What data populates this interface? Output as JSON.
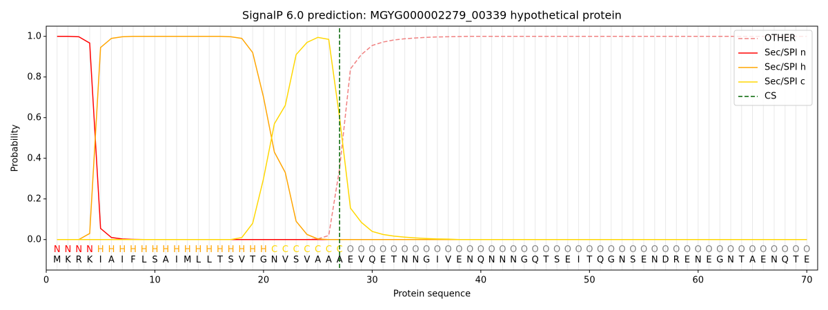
{
  "chart_data": {
    "type": "line",
    "title": "SignalP 6.0 prediction: MGYG000002279_00339 hypothetical protein",
    "xlabel": "Protein sequence",
    "ylabel": "Probability",
    "x": [
      1,
      2,
      3,
      4,
      5,
      6,
      7,
      8,
      9,
      10,
      11,
      12,
      13,
      14,
      15,
      16,
      17,
      18,
      19,
      20,
      21,
      22,
      23,
      24,
      25,
      26,
      27,
      28,
      29,
      30,
      31,
      32,
      33,
      34,
      35,
      36,
      37,
      38,
      39,
      40,
      41,
      42,
      43,
      44,
      45,
      46,
      47,
      48,
      49,
      50,
      51,
      52,
      53,
      54,
      55,
      56,
      57,
      58,
      59,
      60,
      61,
      62,
      63,
      64,
      65,
      66,
      67,
      68,
      69,
      70
    ],
    "residues": [
      "M",
      "K",
      "R",
      "K",
      "I",
      "A",
      "I",
      "F",
      "L",
      "S",
      "A",
      "I",
      "M",
      "L",
      "L",
      "T",
      "S",
      "V",
      "T",
      "G",
      "N",
      "V",
      "S",
      "V",
      "A",
      "A",
      "A",
      "E",
      "V",
      "Q",
      "E",
      "T",
      "N",
      "N",
      "G",
      "I",
      "V",
      "E",
      "N",
      "Q",
      "N",
      "N",
      "N",
      "G",
      "Q",
      "T",
      "S",
      "E",
      "I",
      "T",
      "Q",
      "G",
      "N",
      "S",
      "E",
      "N",
      "D",
      "R",
      "E",
      "N",
      "E",
      "G",
      "N",
      "T",
      "A",
      "E",
      "N",
      "Q",
      "T",
      "E"
    ],
    "labels": [
      "N",
      "N",
      "N",
      "N",
      "H",
      "H",
      "H",
      "H",
      "H",
      "H",
      "H",
      "H",
      "H",
      "H",
      "H",
      "H",
      "H",
      "H",
      "H",
      "H",
      "C",
      "C",
      "C",
      "C",
      "C",
      "C",
      "C",
      "O",
      "O",
      "O",
      "O",
      "O",
      "O",
      "O",
      "O",
      "O",
      "O",
      "O",
      "O",
      "O",
      "O",
      "O",
      "O",
      "O",
      "O",
      "O",
      "O",
      "O",
      "O",
      "O",
      "O",
      "O",
      "O",
      "O",
      "O",
      "O",
      "O",
      "O",
      "O",
      "O",
      "O",
      "O",
      "O",
      "O",
      "O",
      "O",
      "O",
      "O",
      "O",
      "O"
    ],
    "label_colors": {
      "N": "#ff0000",
      "H": "#ffa500",
      "C": "#ffd700",
      "O": "#808080"
    },
    "series": [
      {
        "name": "OTHER",
        "color": "#f08080",
        "dashed": true,
        "values": [
          0,
          0,
          0,
          0,
          0,
          0,
          0,
          0,
          0,
          0,
          0,
          0,
          0,
          0,
          0,
          0,
          0,
          0,
          0,
          0,
          0,
          0,
          0,
          0,
          0.003,
          0.02,
          0.35,
          0.84,
          0.91,
          0.955,
          0.972,
          0.982,
          0.988,
          0.992,
          0.995,
          0.997,
          0.998,
          0.999,
          1,
          1,
          1,
          1,
          1,
          1,
          1,
          1,
          1,
          1,
          1,
          1,
          1,
          1,
          1,
          1,
          1,
          1,
          1,
          1,
          1,
          1,
          1,
          1,
          1,
          1,
          1,
          1,
          1,
          1,
          1,
          1
        ]
      },
      {
        "name": "Sec/SPI n",
        "color": "#ff0000",
        "dashed": false,
        "values": [
          1,
          1,
          0.998,
          0.967,
          0.055,
          0.01,
          0.003,
          0.001,
          0,
          0,
          0,
          0,
          0,
          0,
          0,
          0,
          0,
          0,
          0,
          0,
          0,
          0,
          0,
          0,
          0,
          0,
          0,
          0,
          0,
          0,
          0,
          0,
          0,
          0,
          0,
          0,
          0,
          0,
          0,
          0,
          0,
          0,
          0,
          0,
          0,
          0,
          0,
          0,
          0,
          0,
          0,
          0,
          0,
          0,
          0,
          0,
          0,
          0,
          0,
          0,
          0,
          0,
          0,
          0,
          0,
          0,
          0,
          0,
          0,
          0
        ]
      },
      {
        "name": "Sec/SPI h",
        "color": "#ffa500",
        "dashed": false,
        "values": [
          0,
          0,
          0,
          0.03,
          0.945,
          0.99,
          0.998,
          1,
          1,
          1,
          1,
          1,
          1,
          1,
          1,
          1,
          0.998,
          0.99,
          0.92,
          0.7,
          0.43,
          0.33,
          0.09,
          0.025,
          0.003,
          0,
          0,
          0,
          0,
          0,
          0,
          0,
          0,
          0,
          0,
          0,
          0,
          0,
          0,
          0,
          0,
          0,
          0,
          0,
          0,
          0,
          0,
          0,
          0,
          0,
          0,
          0,
          0,
          0,
          0,
          0,
          0,
          0,
          0,
          0,
          0,
          0,
          0,
          0,
          0,
          0,
          0,
          0,
          0,
          0
        ]
      },
      {
        "name": "Sec/SPI c",
        "color": "#ffd700",
        "dashed": false,
        "values": [
          0,
          0,
          0,
          0,
          0,
          0,
          0,
          0,
          0,
          0,
          0,
          0,
          0,
          0,
          0,
          0,
          0,
          0.01,
          0.08,
          0.3,
          0.57,
          0.66,
          0.91,
          0.97,
          0.995,
          0.985,
          0.6,
          0.155,
          0.085,
          0.04,
          0.025,
          0.017,
          0.012,
          0.008,
          0.005,
          0.003,
          0.002,
          0,
          0,
          0,
          0,
          0,
          0,
          0,
          0,
          0,
          0,
          0,
          0,
          0,
          0,
          0,
          0,
          0,
          0,
          0,
          0,
          0,
          0,
          0,
          0,
          0,
          0,
          0,
          0,
          0,
          0,
          0,
          0,
          0
        ]
      }
    ],
    "cs": {
      "name": "CS",
      "x": 27,
      "color": "#006400"
    },
    "xlim": [
      0,
      71
    ],
    "ylim": [
      -0.15,
      1.05
    ],
    "xticks": [
      0,
      10,
      20,
      30,
      40,
      50,
      60,
      70
    ],
    "yticks": [
      {
        "value": 0,
        "label": "0.0"
      },
      {
        "value": 0.2,
        "label": "0.2"
      },
      {
        "value": 0.4,
        "label": "0.4"
      },
      {
        "value": 0.6,
        "label": "0.6"
      },
      {
        "value": 0.8,
        "label": "0.8"
      },
      {
        "value": 1,
        "label": "1.0"
      }
    ],
    "legend": "upper right"
  }
}
